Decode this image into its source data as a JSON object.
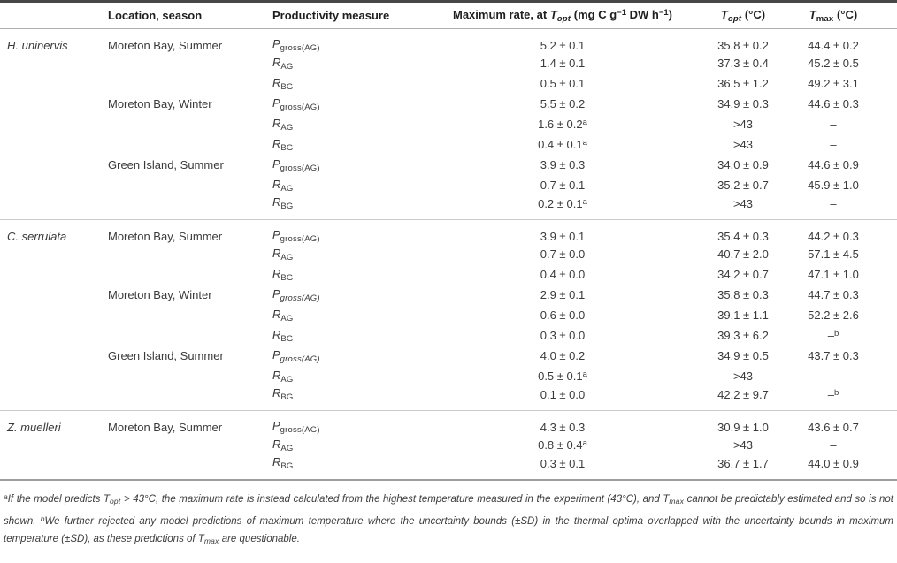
{
  "header": {
    "species": "",
    "location": "Location, season",
    "productivity": "Productivity measure",
    "maxrate": {
      "pre": "Maximum rate, at ",
      "sym": "T",
      "sym_sub": "opt",
      "mid1": " (mg C g",
      "sup1": "−1",
      "mid2": " DW h",
      "sup2": "−1",
      "end": ")"
    },
    "topt": {
      "sym": "T",
      "sym_sub": "opt",
      "end": " (°C)"
    },
    "tmax": {
      "sym": "T",
      "sym_sub": "max",
      "end": " (°C)"
    }
  },
  "sections": [
    {
      "species": "H. uninervis",
      "rows": [
        {
          "location": "Moreton Bay, Summer",
          "measure": "P",
          "measure_sub": "gross(AG)",
          "rate": "5.2 ± 0.1",
          "topt": "35.8 ± 0.2",
          "tmax": "44.4 ± 0.2"
        },
        {
          "measure": "R",
          "measure_sub": "AG",
          "rate": "1.4 ± 0.1",
          "topt": "37.3 ± 0.4",
          "tmax": "45.2 ± 0.5"
        },
        {
          "measure": "R",
          "measure_sub": "BG",
          "rate": "0.5 ± 0.1",
          "topt": "36.5 ± 1.2",
          "tmax": "49.2 ± 3.1"
        },
        {
          "location": "Moreton Bay, Winter",
          "measure": "P",
          "measure_sub": "gross(AG)",
          "rate": "5.5 ± 0.2",
          "topt": "34.9 ± 0.3",
          "tmax": "44.6 ± 0.3"
        },
        {
          "measure": "R",
          "measure_sub": "AG",
          "rate": "1.6 ± 0.2",
          "rate_sup": "a",
          "topt": ">43",
          "tmax": "–"
        },
        {
          "measure": "R",
          "measure_sub": "BG",
          "rate": "0.4 ± 0.1",
          "rate_sup": "a",
          "topt": ">43",
          "tmax": "–"
        },
        {
          "location": "Green Island, Summer",
          "measure": "P",
          "measure_sub": "gross(AG)",
          "rate": "3.9 ± 0.3",
          "topt": "34.0 ± 0.9",
          "tmax": "44.6 ± 0.9"
        },
        {
          "measure": "R",
          "measure_sub": "AG",
          "rate": "0.7 ± 0.1",
          "topt": "35.2 ± 0.7",
          "tmax": "45.9 ± 1.0"
        },
        {
          "measure": "R",
          "measure_sub": "BG",
          "rate": "0.2 ± 0.1",
          "rate_sup": "a",
          "topt": ">43",
          "tmax": "–"
        }
      ]
    },
    {
      "species": "C. serrulata",
      "rows": [
        {
          "location": "Moreton Bay, Summer",
          "measure": "P",
          "measure_sub": "gross(AG)",
          "rate": "3.9 ± 0.1",
          "topt": "35.4 ± 0.3",
          "tmax": "44.2 ± 0.3"
        },
        {
          "measure": "R",
          "measure_sub": "AG",
          "rate": "0.7 ± 0.0",
          "topt": "40.7 ± 2.0",
          "tmax": "57.1 ± 4.5"
        },
        {
          "measure": "R",
          "measure_sub": "BG",
          "rate": "0.4 ± 0.0",
          "topt": "34.2 ± 0.7",
          "tmax": "47.1 ± 1.0"
        },
        {
          "location": "Moreton Bay, Winter",
          "measure": "P",
          "measure_sub": "gross(AG)",
          "measure_sub_italic": true,
          "rate": "2.9 ± 0.1",
          "topt": "35.8 ± 0.3",
          "tmax": "44.7 ± 0.3"
        },
        {
          "measure": "R",
          "measure_sub": "AG",
          "rate": "0.6 ± 0.0",
          "topt": "39.1 ± 1.1",
          "tmax": "52.2 ± 2.6"
        },
        {
          "measure": "R",
          "measure_sub": "BG",
          "rate": "0.3 ± 0.0",
          "topt": "39.3 ± 6.2",
          "tmax": "–",
          "tmax_sup": "b"
        },
        {
          "location": "Green Island, Summer",
          "measure": "P",
          "measure_sub": "gross(AG)",
          "measure_sub_italic": true,
          "rate": "4.0 ± 0.2",
          "topt": "34.9 ± 0.5",
          "tmax": "43.7 ± 0.3"
        },
        {
          "measure": "R",
          "measure_sub": "AG",
          "rate": "0.5 ± 0.1",
          "rate_sup": "a",
          "topt": ">43",
          "tmax": "–"
        },
        {
          "measure": "R",
          "measure_sub": "BG",
          "rate": "0.1 ± 0.0",
          "topt": "42.2 ± 9.7",
          "tmax": "–",
          "tmax_sup": "b"
        }
      ]
    },
    {
      "species": "Z. muelleri",
      "rows": [
        {
          "location": "Moreton Bay, Summer",
          "measure": "P",
          "measure_sub": "gross(AG)",
          "rate": "4.3 ± 0.3",
          "topt": "30.9 ± 1.0",
          "tmax": "43.6 ± 0.7"
        },
        {
          "measure": "R",
          "measure_sub": "AG",
          "rate": "0.8 ± 0.4",
          "rate_sup": "a",
          "topt": ">43",
          "tmax": "–"
        },
        {
          "measure": "R",
          "measure_sub": "BG",
          "rate": "0.3 ± 0.1",
          "topt": "36.7 ± 1.7",
          "tmax": "44.0 ± 0.9"
        }
      ]
    }
  ],
  "footnote": {
    "segments": [
      {
        "sup": "a"
      },
      {
        "text": "If the model predicts "
      },
      {
        "sym": "T",
        "sub": "opt"
      },
      {
        "text": " > 43°C, the maximum rate is instead calculated from the highest temperature measured in the experiment (43°C), and "
      },
      {
        "sym": "T",
        "sub": "max"
      },
      {
        "text": " cannot be predictably estimated and so is not shown. "
      },
      {
        "sup": "b"
      },
      {
        "text": "We further rejected any model predictions of maximum temperature where the uncertainty bounds (±SD) in the thermal optima overlapped with the uncertainty bounds in maximum temperature (±SD), as these predictions of "
      },
      {
        "sym": "T",
        "sub": "max"
      },
      {
        "text": " are questionable."
      }
    ]
  }
}
